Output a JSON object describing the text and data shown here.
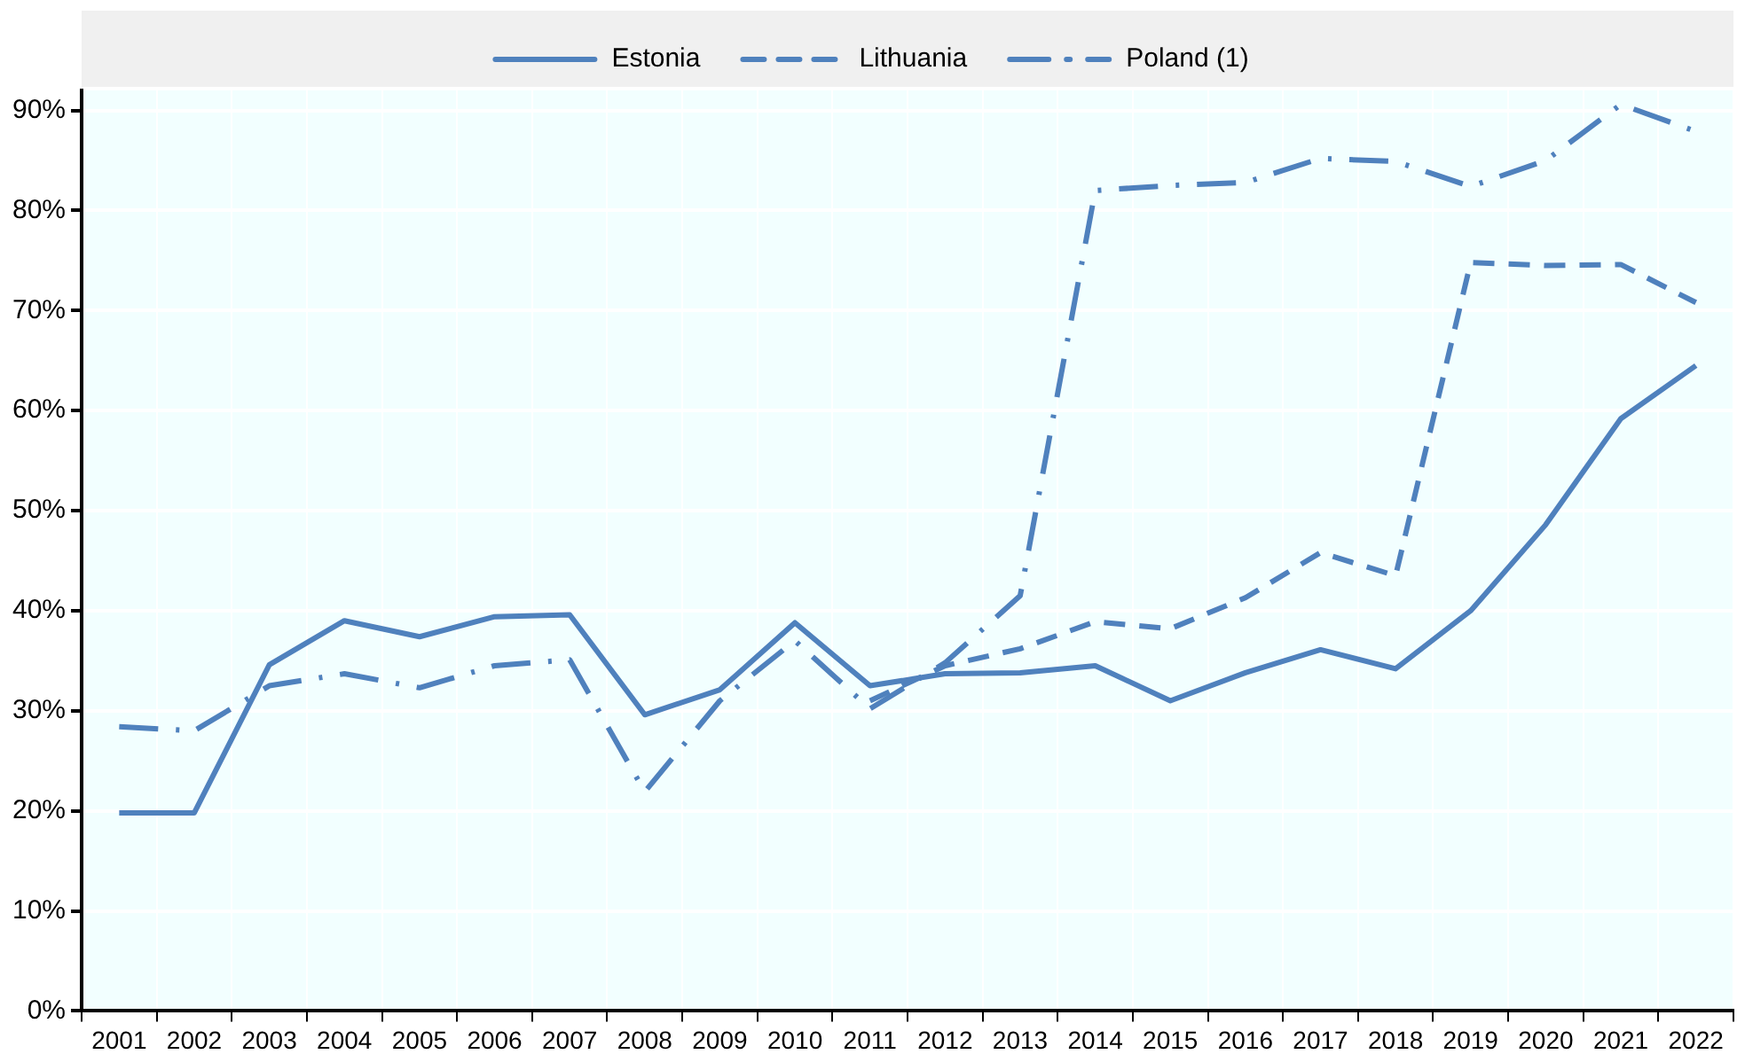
{
  "chart_data": {
    "type": "line",
    "categories": [
      "2001",
      "2002",
      "2003",
      "2004",
      "2005",
      "2006",
      "2007",
      "2008",
      "2009",
      "2010",
      "2011",
      "2012",
      "2013",
      "2014",
      "2015",
      "2016",
      "2017",
      "2018",
      "2019",
      "2020",
      "2021",
      "2022"
    ],
    "series": [
      {
        "name": "Estonia",
        "color": "#4f81bd",
        "line_style": "solid",
        "values": [
          19.8,
          19.8,
          34.6,
          39,
          37.4,
          39.4,
          39.6,
          29.6,
          32.1,
          38.8,
          32.5,
          33.7,
          33.8,
          34.5,
          31,
          33.8,
          36.1,
          34.2,
          40,
          48.6,
          59.2,
          64.5
        ]
      },
      {
        "name": "Lithuania",
        "color": "#4f81bd",
        "line_style": "dashed",
        "values": [
          null,
          null,
          null,
          null,
          null,
          null,
          null,
          null,
          null,
          null,
          31,
          34.5,
          36.2,
          38.9,
          38.2,
          41.3,
          45.8,
          43.5,
          74.8,
          74.5,
          74.6,
          70.8
        ]
      },
      {
        "name": "Poland (1)",
        "color": "#4f81bd",
        "line_style": "dashdot",
        "values": [
          28.4,
          28,
          32.5,
          33.7,
          32.3,
          34.5,
          35.1,
          21.9,
          31,
          37,
          30.2,
          34.8,
          41.5,
          82,
          82.5,
          82.8,
          85.2,
          84.9,
          82.4,
          85,
          90.6,
          87.9
        ]
      }
    ],
    "ylim": [
      0,
      92
    ],
    "yticks": [
      {
        "value": 0,
        "label": "0%"
      },
      {
        "value": 10,
        "label": "10%"
      },
      {
        "value": 20,
        "label": "20%"
      },
      {
        "value": 30,
        "label": "30%"
      },
      {
        "value": 40,
        "label": "40%"
      },
      {
        "value": 50,
        "label": "50%"
      },
      {
        "value": 60,
        "label": "60%"
      },
      {
        "value": 70,
        "label": "70%"
      },
      {
        "value": 80,
        "label": "80%"
      },
      {
        "value": 90,
        "label": "90%"
      }
    ],
    "grid": true,
    "legend": "top",
    "marker": "none"
  }
}
